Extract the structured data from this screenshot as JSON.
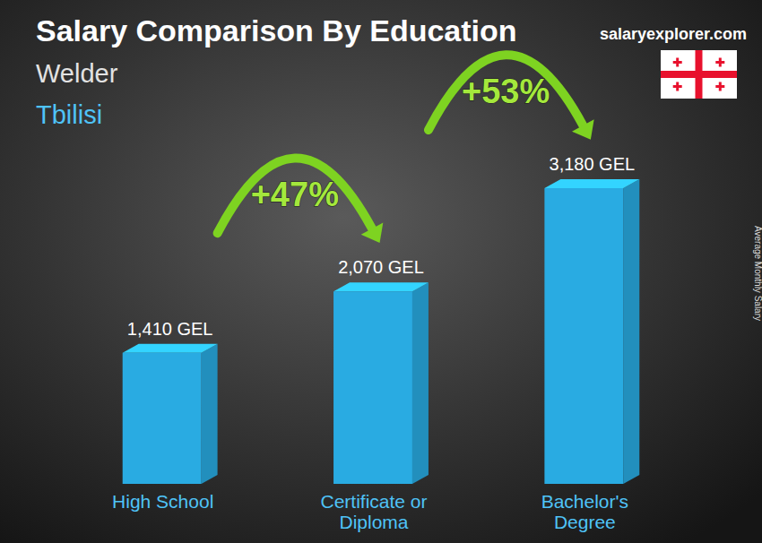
{
  "chart_data": {
    "type": "bar",
    "title": "Salary Comparison By Education",
    "subtitle": "Welder",
    "location": "Tbilisi",
    "source": "salaryexplorer.com",
    "y_label": "Average Monthly Salary",
    "categories": [
      "High School",
      "Certificate or Diploma",
      "Bachelor's Degree"
    ],
    "values": [
      1410,
      2070,
      3180
    ],
    "value_labels": [
      "1,410 GEL",
      "2,070 GEL",
      "3,180 GEL"
    ],
    "data_labels": true,
    "color": "#29abe2",
    "tick_labels": "x",
    "annotations": [
      "+47%",
      "+53%"
    ]
  }
}
